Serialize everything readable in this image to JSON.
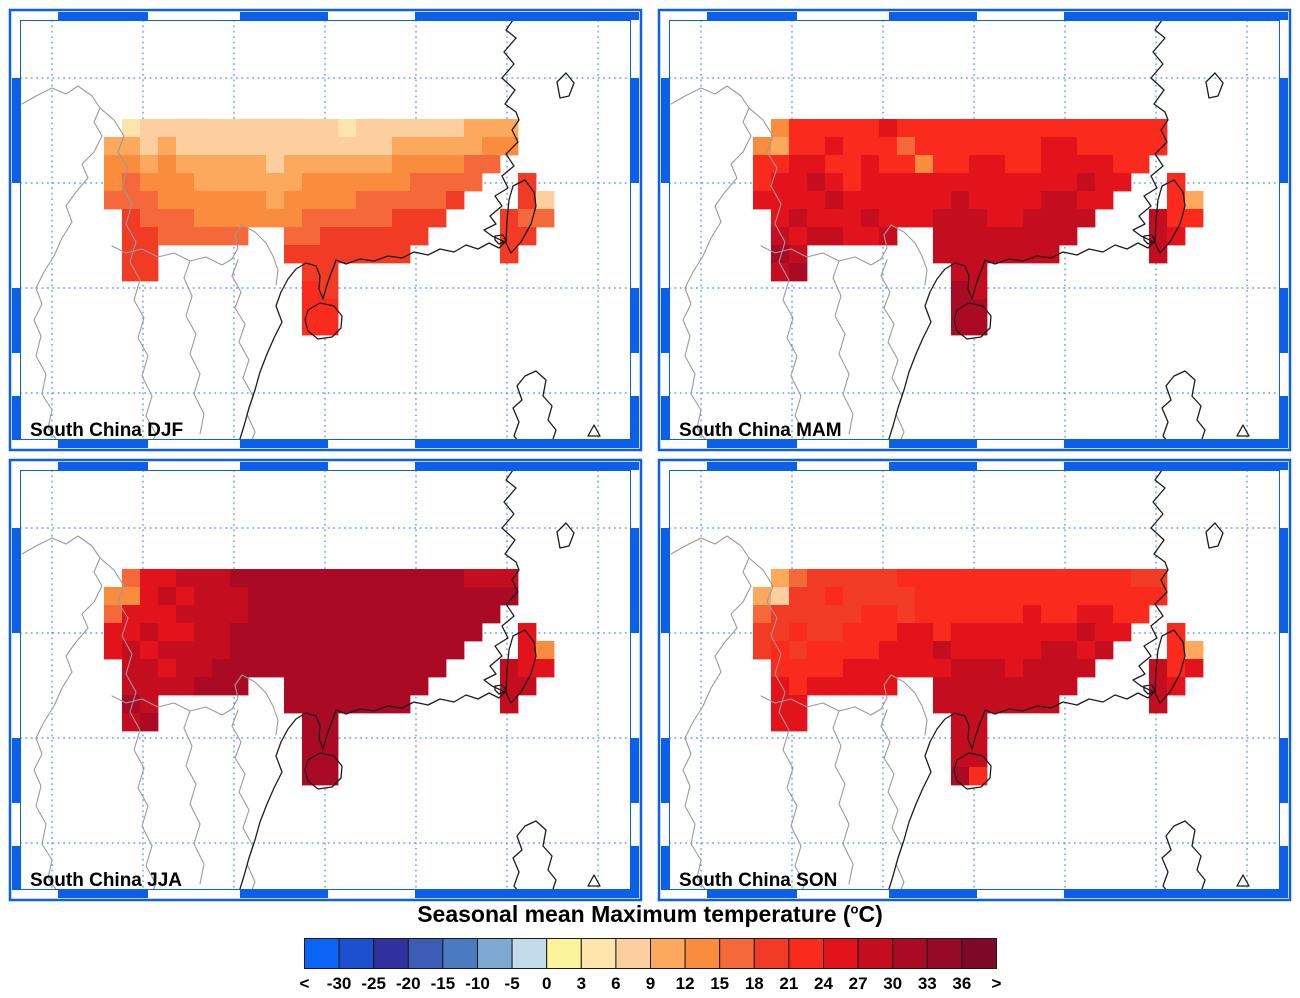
{
  "figure_title": {
    "prefix": "Seasonal mean Maximum temperature (",
    "sup": "o",
    "suffix": "C)",
    "full": "Seasonal mean Maximum temperature (°C)"
  },
  "panels": [
    {
      "season": "DJF",
      "label": "South China DJF",
      "field": [
        [
          -1,
          8,
          9,
          9,
          9,
          9,
          9,
          9,
          9,
          9,
          9,
          9,
          9,
          8,
          9,
          9,
          9,
          9,
          9,
          9,
          10,
          10,
          10,
          -1,
          -1
        ],
        [
          10,
          10,
          9,
          10,
          9,
          9,
          9,
          9,
          9,
          9,
          9,
          9,
          9,
          9,
          9,
          9,
          10,
          10,
          10,
          10,
          10,
          11,
          11,
          -1,
          -1
        ],
        [
          11,
          11,
          10,
          11,
          10,
          10,
          10,
          10,
          10,
          9,
          10,
          10,
          10,
          10,
          10,
          10,
          11,
          11,
          11,
          11,
          12,
          12,
          -1,
          -1,
          -1
        ],
        [
          11,
          12,
          11,
          11,
          11,
          10,
          10,
          10,
          10,
          10,
          10,
          11,
          11,
          11,
          11,
          11,
          11,
          12,
          12,
          12,
          12,
          -1,
          -1,
          13,
          -1
        ],
        [
          12,
          12,
          12,
          11,
          11,
          11,
          11,
          11,
          11,
          10,
          11,
          11,
          11,
          11,
          12,
          12,
          12,
          12,
          12,
          13,
          -1,
          -1,
          -1,
          13,
          9
        ],
        [
          -1,
          13,
          12,
          12,
          12,
          11,
          11,
          11,
          11,
          11,
          11,
          12,
          12,
          12,
          12,
          12,
          13,
          13,
          13,
          -1,
          -1,
          -1,
          13,
          12,
          12
        ],
        [
          -1,
          13,
          13,
          12,
          12,
          12,
          12,
          12,
          -1,
          -1,
          12,
          12,
          13,
          13,
          13,
          13,
          13,
          13,
          -1,
          -1,
          -1,
          -1,
          13,
          13,
          -1
        ],
        [
          -1,
          13,
          13,
          -1,
          -1,
          -1,
          -1,
          -1,
          -1,
          -1,
          13,
          13,
          13,
          13,
          13,
          13,
          13,
          -1,
          -1,
          -1,
          -1,
          -1,
          13,
          -1,
          -1
        ],
        [
          -1,
          13,
          13,
          -1,
          -1,
          -1,
          -1,
          -1,
          -1,
          -1,
          -1,
          13,
          13,
          -1,
          -1,
          -1,
          -1,
          -1,
          -1,
          -1,
          -1,
          -1,
          -1,
          -1,
          -1
        ],
        [
          -1,
          -1,
          -1,
          -1,
          -1,
          -1,
          -1,
          -1,
          -1,
          -1,
          -1,
          14,
          13,
          -1,
          -1,
          -1,
          -1,
          -1,
          -1,
          -1,
          -1,
          -1,
          -1,
          -1,
          -1
        ],
        [
          -1,
          -1,
          -1,
          -1,
          -1,
          -1,
          -1,
          -1,
          -1,
          -1,
          -1,
          14,
          14,
          -1,
          -1,
          -1,
          -1,
          -1,
          -1,
          -1,
          -1,
          -1,
          -1,
          -1,
          -1
        ],
        [
          -1,
          -1,
          -1,
          -1,
          -1,
          -1,
          -1,
          -1,
          -1,
          -1,
          -1,
          14,
          14,
          -1,
          -1,
          -1,
          -1,
          -1,
          -1,
          -1,
          -1,
          -1,
          -1,
          -1,
          -1
        ]
      ]
    },
    {
      "season": "MAM",
      "label": "South China MAM",
      "field": [
        [
          -1,
          11,
          14,
          14,
          14,
          14,
          14,
          15,
          14,
          14,
          14,
          14,
          14,
          14,
          14,
          14,
          14,
          14,
          14,
          14,
          14,
          14,
          14,
          -1,
          -1
        ],
        [
          11,
          10,
          14,
          14,
          15,
          14,
          14,
          14,
          12,
          14,
          14,
          14,
          14,
          14,
          14,
          14,
          15,
          15,
          14,
          14,
          14,
          14,
          14,
          -1,
          -1
        ],
        [
          14,
          14,
          15,
          15,
          14,
          14,
          15,
          14,
          14,
          11,
          14,
          14,
          15,
          15,
          14,
          14,
          15,
          15,
          15,
          15,
          14,
          14,
          -1,
          -1,
          -1
        ],
        [
          14,
          15,
          15,
          16,
          15,
          14,
          15,
          15,
          15,
          15,
          15,
          15,
          15,
          15,
          15,
          15,
          15,
          15,
          16,
          15,
          15,
          -1,
          -1,
          14,
          -1
        ],
        [
          15,
          15,
          15,
          15,
          16,
          15,
          15,
          15,
          15,
          15,
          15,
          16,
          15,
          15,
          15,
          15,
          16,
          16,
          15,
          15,
          -1,
          -1,
          -1,
          14,
          10
        ],
        [
          -1,
          15,
          16,
          15,
          15,
          15,
          16,
          15,
          15,
          15,
          16,
          16,
          16,
          15,
          15,
          16,
          16,
          16,
          16,
          -1,
          -1,
          -1,
          16,
          14,
          14
        ],
        [
          -1,
          16,
          15,
          16,
          16,
          15,
          15,
          16,
          -1,
          -1,
          16,
          16,
          16,
          16,
          16,
          16,
          16,
          16,
          -1,
          -1,
          -1,
          -1,
          16,
          15,
          -1
        ],
        [
          -1,
          17,
          16,
          -1,
          -1,
          -1,
          -1,
          -1,
          -1,
          -1,
          16,
          16,
          16,
          16,
          16,
          16,
          16,
          -1,
          -1,
          -1,
          -1,
          -1,
          16,
          -1,
          -1
        ],
        [
          -1,
          16,
          17,
          -1,
          -1,
          -1,
          -1,
          -1,
          -1,
          -1,
          -1,
          16,
          16,
          -1,
          -1,
          -1,
          -1,
          -1,
          -1,
          -1,
          -1,
          -1,
          -1,
          -1,
          -1
        ],
        [
          -1,
          -1,
          -1,
          -1,
          -1,
          -1,
          -1,
          -1,
          -1,
          -1,
          -1,
          17,
          16,
          -1,
          -1,
          -1,
          -1,
          -1,
          -1,
          -1,
          -1,
          -1,
          -1,
          -1,
          -1
        ],
        [
          -1,
          -1,
          -1,
          -1,
          -1,
          -1,
          -1,
          -1,
          -1,
          -1,
          -1,
          17,
          17,
          -1,
          -1,
          -1,
          -1,
          -1,
          -1,
          -1,
          -1,
          -1,
          -1,
          -1,
          -1
        ],
        [
          -1,
          -1,
          -1,
          -1,
          -1,
          -1,
          -1,
          -1,
          -1,
          -1,
          -1,
          17,
          17,
          -1,
          -1,
          -1,
          -1,
          -1,
          -1,
          -1,
          -1,
          -1,
          -1,
          -1,
          -1
        ]
      ]
    },
    {
      "season": "JJA",
      "label": "South China JJA",
      "field": [
        [
          -1,
          12,
          15,
          15,
          16,
          16,
          16,
          17,
          17,
          17,
          17,
          17,
          17,
          17,
          17,
          17,
          17,
          17,
          17,
          17,
          16,
          16,
          16,
          -1,
          -1
        ],
        [
          11,
          11,
          15,
          16,
          15,
          16,
          16,
          16,
          17,
          17,
          17,
          17,
          17,
          17,
          17,
          17,
          17,
          17,
          17,
          17,
          17,
          17,
          17,
          -1,
          -1
        ],
        [
          12,
          15,
          15,
          15,
          16,
          16,
          16,
          16,
          17,
          17,
          17,
          17,
          17,
          17,
          17,
          17,
          17,
          17,
          17,
          17,
          17,
          17,
          -1,
          -1,
          -1
        ],
        [
          15,
          15,
          16,
          15,
          15,
          16,
          16,
          17,
          17,
          17,
          17,
          17,
          17,
          17,
          17,
          17,
          17,
          17,
          17,
          17,
          17,
          -1,
          -1,
          15,
          -1
        ],
        [
          15,
          16,
          15,
          16,
          16,
          16,
          16,
          17,
          17,
          17,
          17,
          17,
          17,
          17,
          17,
          17,
          17,
          17,
          17,
          17,
          -1,
          -1,
          -1,
          15,
          11
        ],
        [
          -1,
          16,
          16,
          15,
          16,
          16,
          17,
          17,
          17,
          17,
          17,
          17,
          17,
          17,
          17,
          17,
          17,
          17,
          17,
          -1,
          -1,
          -1,
          16,
          15,
          15
        ],
        [
          -1,
          16,
          16,
          16,
          16,
          17,
          17,
          17,
          -1,
          -1,
          17,
          17,
          17,
          17,
          17,
          17,
          17,
          17,
          -1,
          -1,
          -1,
          -1,
          16,
          16,
          -1
        ],
        [
          -1,
          17,
          16,
          -1,
          -1,
          -1,
          -1,
          -1,
          -1,
          -1,
          17,
          17,
          17,
          17,
          17,
          17,
          17,
          -1,
          -1,
          -1,
          -1,
          -1,
          16,
          -1,
          -1
        ],
        [
          -1,
          16,
          17,
          -1,
          -1,
          -1,
          -1,
          -1,
          -1,
          -1,
          -1,
          17,
          17,
          -1,
          -1,
          -1,
          -1,
          -1,
          -1,
          -1,
          -1,
          -1,
          -1,
          -1,
          -1
        ],
        [
          -1,
          -1,
          -1,
          -1,
          -1,
          -1,
          -1,
          -1,
          -1,
          -1,
          -1,
          17,
          17,
          -1,
          -1,
          -1,
          -1,
          -1,
          -1,
          -1,
          -1,
          -1,
          -1,
          -1,
          -1
        ],
        [
          -1,
          -1,
          -1,
          -1,
          -1,
          -1,
          -1,
          -1,
          -1,
          -1,
          -1,
          17,
          17,
          -1,
          -1,
          -1,
          -1,
          -1,
          -1,
          -1,
          -1,
          -1,
          -1,
          -1,
          -1
        ],
        [
          -1,
          -1,
          -1,
          -1,
          -1,
          -1,
          -1,
          -1,
          -1,
          -1,
          -1,
          17,
          17,
          -1,
          -1,
          -1,
          -1,
          -1,
          -1,
          -1,
          -1,
          -1,
          -1,
          -1,
          -1
        ]
      ]
    },
    {
      "season": "SON",
      "label": "South China SON",
      "field": [
        [
          -1,
          10,
          12,
          13,
          13,
          13,
          13,
          13,
          14,
          14,
          14,
          14,
          14,
          14,
          14,
          14,
          14,
          14,
          14,
          14,
          14,
          13,
          13,
          -1,
          -1
        ],
        [
          10,
          9,
          13,
          13,
          14,
          13,
          13,
          13,
          13,
          14,
          14,
          14,
          14,
          14,
          14,
          14,
          14,
          14,
          14,
          14,
          14,
          14,
          14,
          -1,
          -1
        ],
        [
          12,
          13,
          13,
          13,
          13,
          13,
          14,
          14,
          13,
          14,
          14,
          14,
          14,
          14,
          14,
          15,
          14,
          14,
          15,
          15,
          14,
          14,
          -1,
          -1,
          -1
        ],
        [
          13,
          13,
          14,
          13,
          13,
          14,
          14,
          14,
          15,
          15,
          14,
          15,
          15,
          15,
          15,
          15,
          15,
          15,
          16,
          15,
          15,
          -1,
          -1,
          14,
          -1
        ],
        [
          13,
          14,
          13,
          14,
          14,
          14,
          14,
          15,
          15,
          15,
          16,
          15,
          15,
          15,
          15,
          15,
          16,
          16,
          15,
          16,
          -1,
          -1,
          -1,
          14,
          10
        ],
        [
          -1,
          14,
          14,
          14,
          14,
          15,
          15,
          15,
          15,
          15,
          15,
          16,
          16,
          16,
          15,
          16,
          16,
          16,
          16,
          -1,
          -1,
          -1,
          16,
          14,
          15
        ],
        [
          -1,
          15,
          14,
          15,
          15,
          15,
          15,
          15,
          -1,
          -1,
          16,
          16,
          16,
          16,
          16,
          16,
          16,
          16,
          -1,
          -1,
          -1,
          -1,
          16,
          15,
          -1
        ],
        [
          -1,
          15,
          15,
          -1,
          -1,
          -1,
          -1,
          -1,
          -1,
          -1,
          16,
          16,
          16,
          16,
          16,
          16,
          16,
          -1,
          -1,
          -1,
          -1,
          -1,
          16,
          -1,
          -1
        ],
        [
          -1,
          15,
          15,
          -1,
          -1,
          -1,
          -1,
          -1,
          -1,
          -1,
          -1,
          16,
          16,
          -1,
          -1,
          -1,
          -1,
          -1,
          -1,
          -1,
          -1,
          -1,
          -1,
          -1,
          -1
        ],
        [
          -1,
          -1,
          -1,
          -1,
          -1,
          -1,
          -1,
          -1,
          -1,
          -1,
          -1,
          16,
          16,
          -1,
          -1,
          -1,
          -1,
          -1,
          -1,
          -1,
          -1,
          -1,
          -1,
          -1,
          -1
        ],
        [
          -1,
          -1,
          -1,
          -1,
          -1,
          -1,
          -1,
          -1,
          -1,
          -1,
          -1,
          16,
          16,
          -1,
          -1,
          -1,
          -1,
          -1,
          -1,
          -1,
          -1,
          -1,
          -1,
          -1,
          -1
        ],
        [
          -1,
          -1,
          -1,
          -1,
          -1,
          -1,
          -1,
          -1,
          -1,
          -1,
          -1,
          17,
          14,
          -1,
          -1,
          -1,
          -1,
          -1,
          -1,
          -1,
          -1,
          -1,
          -1,
          -1,
          -1
        ]
      ]
    }
  ],
  "colorbar": {
    "tick_labels": [
      "<",
      "-30",
      "-25",
      "-20",
      "-15",
      "-10",
      "-5",
      "0",
      "3",
      "6",
      "9",
      "12",
      "15",
      "18",
      "21",
      "24",
      "27",
      "30",
      "33",
      "36",
      ">"
    ],
    "colors": [
      "#0B64F5",
      "#1D50CE",
      "#30309F",
      "#3D5CB8",
      "#4A7ABF",
      "#7FA9D2",
      "#C4DBEC",
      "#FAF49B",
      "#FDE5AB",
      "#FDCF9E",
      "#FCA95D",
      "#FA8C3E",
      "#F4683A",
      "#F23B25",
      "#FA2B1D",
      "#E2131A",
      "#C50D20",
      "#AB0A25",
      "#960A28",
      "#7D0926"
    ]
  },
  "map_style": {
    "frame_blue": "#0B5FE8",
    "grid_blue": "#4B8BFF",
    "coast_black": "#1C1C1C",
    "border_grey": "#9A9A9A",
    "sea_white": "#FFFFFF"
  }
}
